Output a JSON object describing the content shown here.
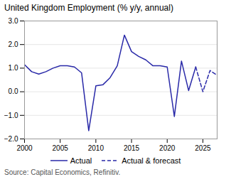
{
  "chart_data": {
    "type": "line",
    "title": "United Kingdom Employment (% y/y, annual)",
    "source": "Source: Capital Economics, Refinitiv.",
    "series": [
      {
        "name": "Actual",
        "color": "#2929a8",
        "line_style": "solid",
        "x": [
          2000,
          2001,
          2002,
          2003,
          2004,
          2005,
          2006,
          2007,
          2008,
          2009,
          2010,
          2011,
          2012,
          2013,
          2014,
          2015,
          2016,
          2017,
          2018,
          2019,
          2020,
          2021,
          2022,
          2023,
          2024
        ],
        "values": [
          1.15,
          0.85,
          0.75,
          0.85,
          1.0,
          1.1,
          1.1,
          1.05,
          0.8,
          -1.65,
          0.25,
          0.3,
          0.6,
          1.1,
          2.4,
          1.7,
          1.5,
          1.35,
          1.1,
          1.1,
          1.05,
          -1.05,
          1.3,
          0.05,
          1.05
        ]
      },
      {
        "name": "Actual & forecast",
        "color": "#2929a8",
        "line_style": "dashed",
        "x": [
          2024,
          2025,
          2026,
          2027
        ],
        "values": [
          1.05,
          0.0,
          0.9,
          0.7
        ]
      }
    ],
    "xlim": [
      2000,
      2027
    ],
    "xticks": [
      2000,
      2005,
      2010,
      2015,
      2020,
      2025
    ],
    "ylim": [
      -2,
      3
    ],
    "yticks": [
      -2,
      -1,
      0,
      1,
      2,
      3
    ],
    "grid": "y",
    "legend": "bottom"
  }
}
